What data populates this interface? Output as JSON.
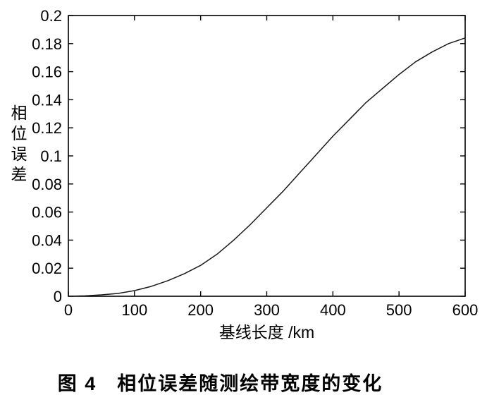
{
  "chart_data": {
    "type": "line",
    "title": "",
    "xlabel": "基线长度 /km",
    "ylabel": "相位误差",
    "xlim": [
      0,
      600
    ],
    "ylim": [
      0,
      0.2
    ],
    "x_ticks": [
      "0",
      "100",
      "200",
      "300",
      "400",
      "500",
      "600"
    ],
    "y_ticks": [
      "0",
      "0.02",
      "0.04",
      "0.06",
      "0.08",
      "0.1",
      "0.12",
      "0.14",
      "0.16",
      "0.18",
      "0.2"
    ],
    "grid": false,
    "legend": "none",
    "line_color": "#1a1a1a",
    "series": [
      {
        "name": "相位误差",
        "x": [
          0,
          25,
          50,
          75,
          100,
          125,
          150,
          175,
          200,
          225,
          250,
          275,
          300,
          325,
          350,
          375,
          400,
          425,
          450,
          475,
          500,
          525,
          550,
          575,
          600
        ],
        "y": [
          0,
          0.0003,
          0.001,
          0.002,
          0.004,
          0.007,
          0.011,
          0.016,
          0.022,
          0.03,
          0.04,
          0.051,
          0.063,
          0.075,
          0.088,
          0.101,
          0.114,
          0.126,
          0.138,
          0.148,
          0.158,
          0.167,
          0.174,
          0.18,
          0.184
        ]
      }
    ]
  },
  "caption": "图 4　相位误差随测绘带宽度的变化"
}
